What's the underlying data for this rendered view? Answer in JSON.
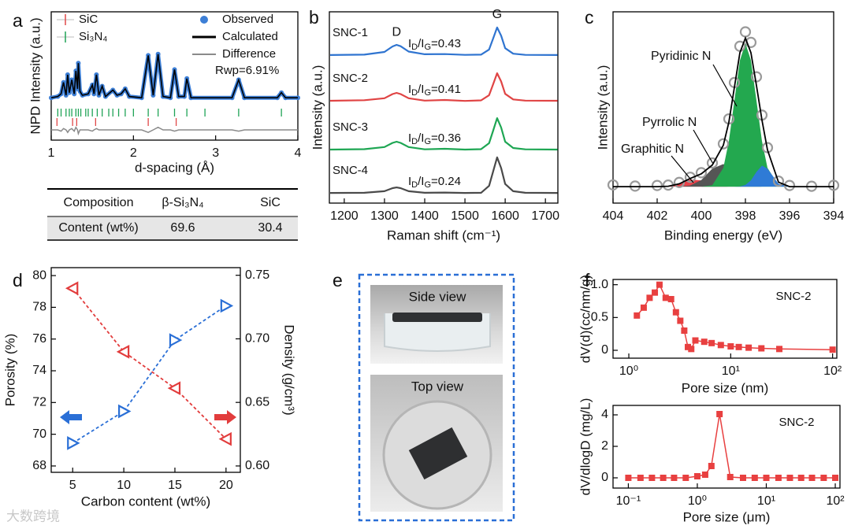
{
  "panel_labels": [
    "a",
    "b",
    "c",
    "d",
    "e",
    "f"
  ],
  "watermark": "大数跨境",
  "table": {
    "rows": [
      [
        "Composition",
        "β-Si₃N₄",
        "SiC"
      ],
      [
        "Content (wt%)",
        "69.6",
        "30.4"
      ]
    ]
  },
  "photos": {
    "labels": [
      "Side view",
      "Top view"
    ]
  },
  "chart_data": [
    {
      "type": "diffraction",
      "xlabel": "d-spacing (Å)",
      "ylabel": "NPD Intensity (a.u.)",
      "annotation": "Rwp=6.91%",
      "xlim": [
        1,
        4
      ],
      "xticks": [
        1,
        2,
        3,
        4
      ],
      "ylim": [
        0,
        100
      ],
      "x": [
        1.0,
        1.08,
        1.12,
        1.15,
        1.18,
        1.2,
        1.22,
        1.25,
        1.28,
        1.3,
        1.32,
        1.33,
        1.35,
        1.38,
        1.45,
        1.5,
        1.52,
        1.55,
        1.58,
        1.62,
        1.66,
        1.75,
        1.8,
        1.85,
        1.9,
        1.95,
        2.1,
        2.18,
        2.24,
        2.3,
        2.36,
        2.45,
        2.5,
        2.55,
        2.62,
        2.65,
        2.7,
        3.2,
        3.28,
        3.35,
        3.75,
        3.8,
        3.85,
        4.0
      ],
      "series": [
        {
          "name": "Observed",
          "color": "#3d7fd6",
          "values": [
            33,
            34,
            36,
            45,
            35,
            51,
            37,
            47,
            36,
            54,
            40,
            60,
            38,
            35,
            36,
            43,
            36,
            51,
            35,
            42,
            34,
            39,
            35,
            36,
            40,
            34,
            33,
            66,
            35,
            67,
            34,
            33,
            55,
            34,
            34,
            48,
            33,
            33,
            47,
            33,
            33,
            37,
            33,
            33
          ]
        },
        {
          "name": "Calculated",
          "color": "#000000",
          "values": [
            33,
            34,
            36,
            45,
            35,
            51,
            37,
            47,
            36,
            54,
            40,
            60,
            38,
            35,
            36,
            43,
            36,
            51,
            35,
            42,
            34,
            39,
            35,
            36,
            40,
            34,
            33,
            66,
            35,
            67,
            34,
            33,
            55,
            34,
            34,
            48,
            33,
            33,
            47,
            33,
            33,
            37,
            33,
            33
          ]
        },
        {
          "name": "Difference",
          "color": "#8a8a8a",
          "values": [
            8,
            8,
            7,
            9,
            8,
            6,
            8,
            9,
            7,
            10,
            8,
            5,
            8,
            8,
            8,
            7,
            8,
            9,
            8,
            8,
            8,
            8,
            8,
            8,
            8,
            8,
            8,
            6,
            8,
            10,
            8,
            8,
            7,
            8,
            8,
            8,
            8,
            8,
            7,
            8,
            8,
            8,
            8,
            8
          ]
        }
      ],
      "reflections": [
        {
          "name": "SiC",
          "color": "#e04848",
          "x": [
            1.07,
            1.26,
            1.31,
            1.54,
            2.18,
            2.52
          ]
        },
        {
          "name": "Si₃N₄",
          "color": "#1fa356",
          "x": [
            1.08,
            1.12,
            1.18,
            1.22,
            1.25,
            1.3,
            1.33,
            1.36,
            1.42,
            1.45,
            1.5,
            1.56,
            1.62,
            1.7,
            1.75,
            1.82,
            1.9,
            2.0,
            2.18,
            2.3,
            2.5,
            2.65,
            2.87,
            3.28,
            3.8
          ]
        }
      ]
    },
    {
      "type": "raman",
      "xlabel": "Raman shift (cm⁻¹)",
      "ylabel": "Intensity (a.u.)",
      "xlim": [
        1163,
        1731
      ],
      "xticks": [
        1200,
        1300,
        1400,
        1500,
        1600,
        1700
      ],
      "ylim": [
        0,
        100
      ],
      "x": [
        1165,
        1250,
        1300,
        1320,
        1330,
        1340,
        1360,
        1400,
        1450,
        1500,
        1540,
        1560,
        1570,
        1580,
        1590,
        1600,
        1620,
        1650,
        1730
      ],
      "series": [
        {
          "name": "SNC-1",
          "color": "#2f74d0",
          "values": [
            77.4,
            77.6,
            79.0,
            81.9,
            82.7,
            82.0,
            79.2,
            77.8,
            77.9,
            77.5,
            77.6,
            80.3,
            86.0,
            91.8,
            87.5,
            81.0,
            78.1,
            77.5,
            77.4
          ]
        },
        {
          "name": "SNC-2",
          "color": "#e04444",
          "values": [
            53.5,
            53.8,
            54.8,
            57.0,
            57.6,
            57.0,
            54.8,
            53.6,
            53.9,
            53.4,
            53.7,
            56.4,
            62.1,
            67.9,
            63.6,
            57.1,
            54.2,
            53.6,
            53.5
          ]
        },
        {
          "name": "SNC-3",
          "color": "#1ea653",
          "values": [
            28.0,
            28.2,
            29.3,
            31.5,
            32.1,
            31.5,
            29.3,
            28.1,
            28.4,
            28.0,
            28.2,
            31.3,
            37.8,
            44.4,
            39.5,
            32.1,
            28.8,
            28.1,
            28.0
          ]
        },
        {
          "name": "SNC-4",
          "color": "#4a4a4a",
          "values": [
            5.3,
            5.4,
            6.2,
            7.8,
            8.2,
            7.8,
            6.2,
            5.4,
            5.5,
            5.3,
            5.4,
            9.0,
            16.5,
            23.9,
            18.3,
            10.0,
            6.2,
            5.4,
            5.3
          ]
        }
      ],
      "ratios": {
        "values": [
          0.43,
          0.41,
          0.36,
          0.24
        ],
        "value_labels": [
          "ID/IG=0.43",
          "ID/IG=0.41",
          "ID/IG=0.36",
          "ID/IG=0.24"
        ]
      },
      "peak_labels": [
        {
          "label": "D",
          "x": 1330
        },
        {
          "label": "G",
          "x": 1580
        }
      ]
    },
    {
      "type": "xps",
      "xlabel": "Binding energy (eV)",
      "ylabel": "Intensity (a.u.)",
      "xlim": [
        404,
        394
      ],
      "xticks": [
        404,
        402,
        400,
        398,
        396,
        394
      ],
      "ylim": [
        0,
        100
      ],
      "x": [
        404,
        403,
        402,
        401.5,
        401,
        400.5,
        400,
        399.5,
        399,
        398.75,
        398.5,
        398.25,
        398,
        397.75,
        397.5,
        397.25,
        397,
        396.5,
        396,
        395,
        394
      ],
      "series": [
        {
          "name": "Graphitic N",
          "color": "#e8424a",
          "values": [
            8.6,
            8.6,
            8.6,
            8.8,
            10.1,
            12.3,
            11.9,
            9.7,
            8.7,
            8.6,
            8.6,
            8.6,
            8.6,
            8.6,
            8.6,
            8.6,
            8.6,
            8.6,
            8.6,
            8.6,
            8.6
          ]
        },
        {
          "name": "Pyrrolic N",
          "color": "#555555",
          "values": [
            8.6,
            8.6,
            8.6,
            8.6,
            8.6,
            9.2,
            12.0,
            18.0,
            20.4,
            18.5,
            15.5,
            12.5,
            10.4,
            9.3,
            8.8,
            8.6,
            8.6,
            8.6,
            8.6,
            8.6,
            8.6
          ]
        },
        {
          "name": "Pyridinic N",
          "color": "#23a84f",
          "values": [
            8.6,
            8.6,
            8.6,
            8.6,
            8.6,
            8.6,
            8.6,
            9.4,
            18.4,
            32.4,
            53.6,
            74.6,
            83.6,
            74.6,
            53.6,
            32.4,
            18.4,
            9.4,
            8.6,
            8.6,
            8.6
          ]
        },
        {
          "color": "#2f7bd6",
          "values": [
            8.6,
            8.6,
            8.6,
            8.6,
            8.6,
            8.6,
            8.6,
            8.6,
            8.6,
            8.6,
            8.6,
            8.7,
            9.5,
            11.9,
            16.3,
            19.6,
            18.0,
            10.1,
            8.6,
            8.6,
            8.6
          ]
        }
      ],
      "observed": {
        "color": "#9a9a9a",
        "values": [
          9.5,
          8.9,
          9.2,
          9.4,
          10.8,
          13.5,
          15.9,
          21,
          31,
          44,
          63,
          82,
          89.5,
          84,
          66,
          46,
          29,
          11.5,
          9.2,
          8.8,
          9.3
        ]
      },
      "fit": {
        "color": "#000000",
        "values": [
          8.6,
          8.6,
          8.6,
          8.8,
          10.1,
          12.9,
          15.3,
          19.9,
          30.3,
          42.3,
          60.5,
          78.6,
          86.3,
          78.6,
          61.5,
          43.4,
          27.8,
          10.9,
          8.6,
          8.6,
          8.6
        ]
      }
    },
    {
      "type": "dual",
      "xlabel": "Carbon content (wt%)",
      "ylabel": "Porosity (%)",
      "y2label": "Density (g/cm³)",
      "x": [
        5,
        10,
        15,
        20
      ],
      "xlim": [
        2.9,
        21.4
      ],
      "xticks": [
        5,
        10,
        15,
        20
      ],
      "ylim": [
        67.6,
        80.5
      ],
      "yticks": [
        68,
        70,
        72,
        74,
        76,
        78,
        80
      ],
      "y2lim": [
        0.595,
        0.756
      ],
      "y2ticks": [
        {
          "value": 0.6,
          "label": "0.60"
        },
        {
          "value": 0.65,
          "label": "0.65"
        },
        {
          "value": 0.7,
          "label": "0.70"
        },
        {
          "value": 0.75,
          "label": "0.75"
        }
      ],
      "series": [
        {
          "color": "#e23c3c",
          "values": [
            79.2,
            75.2,
            72.9,
            69.7
          ]
        },
        {
          "color": "#2a6fd6",
          "axis": "y2",
          "values": [
            0.618,
            0.643,
            0.699,
            0.726
          ]
        }
      ]
    },
    {
      "type": "logline",
      "xlog": true,
      "xlabel": "Pore size (nm)",
      "ylabel": "dV(d)(cc/nm/g)",
      "annotation": "SNC-2",
      "color": "#e84040",
      "xlim": [
        0.7,
        110
      ],
      "xticks": [
        {
          "value": 1,
          "label": "10⁰"
        },
        {
          "value": 10,
          "label": "10¹"
        },
        {
          "value": 100,
          "label": "10²"
        }
      ],
      "ylim": [
        -0.12,
        1.08
      ],
      "yticks": [
        0,
        0.5,
        {
          "value": 1,
          "label": "1.0"
        }
      ],
      "x": [
        1.2,
        1.4,
        1.6,
        1.8,
        2.0,
        2.3,
        2.6,
        2.9,
        3.2,
        3.5,
        3.8,
        4.1,
        4.5,
        5.5,
        6.5,
        8,
        10,
        12,
        15,
        20,
        30,
        100
      ],
      "values": [
        0.53,
        0.65,
        0.8,
        0.88,
        1.0,
        0.8,
        0.78,
        0.58,
        0.45,
        0.3,
        0.05,
        0.02,
        0.15,
        0.13,
        0.11,
        0.08,
        0.06,
        0.05,
        0.04,
        0.03,
        0.02,
        0.01
      ]
    },
    {
      "type": "logline",
      "xlog": true,
      "xlabel": "Pore size (μm)",
      "ylabel": "dV/dlogD (mg/L)",
      "annotation": "SNC-2",
      "color": "#e84040",
      "xlim": [
        0.06,
        117
      ],
      "xticks": [
        {
          "value": 0.1,
          "label": "10⁻¹"
        },
        {
          "value": 1,
          "label": "10⁰"
        },
        {
          "value": 10,
          "label": "10¹"
        },
        {
          "value": 100,
          "label": "10²"
        }
      ],
      "ylim": [
        -0.65,
        4.6
      ],
      "yticks": [
        0,
        2,
        4
      ],
      "x": [
        0.1,
        0.15,
        0.22,
        0.32,
        0.46,
        0.68,
        1.0,
        1.3,
        1.6,
        2.1,
        3.0,
        4.6,
        6.8,
        10,
        15,
        22,
        32,
        46,
        68,
        100
      ],
      "values": [
        0,
        0,
        0,
        0,
        0,
        0,
        0.1,
        0.2,
        0.75,
        4.05,
        0.05,
        0,
        0,
        0,
        0,
        0,
        0,
        0,
        0,
        0
      ]
    }
  ]
}
